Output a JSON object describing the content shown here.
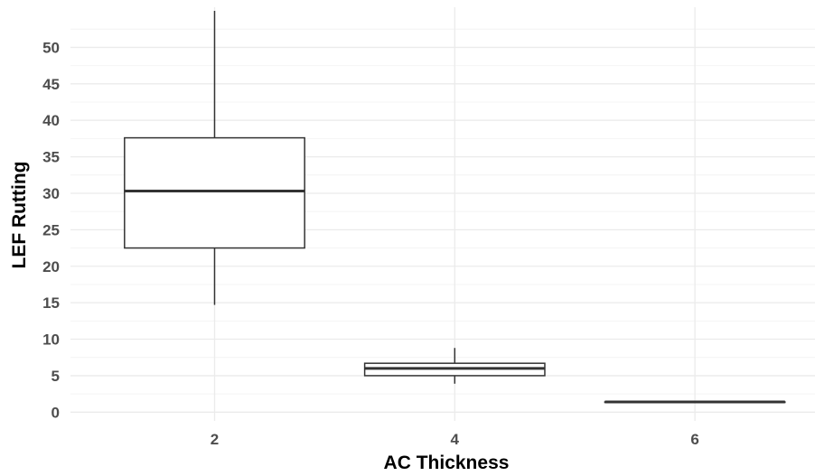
{
  "chart_data": {
    "type": "boxplot",
    "title": "",
    "xlabel": "AC Thickness",
    "ylabel": "LEF Rutting",
    "categories": [
      "2",
      "4",
      "6"
    ],
    "x_values": [
      2,
      4,
      6
    ],
    "xlim": [
      0.8,
      7.0
    ],
    "ylim": [
      -1.2,
      55.5
    ],
    "yticks": [
      0,
      5,
      10,
      15,
      20,
      25,
      30,
      35,
      40,
      45,
      50
    ],
    "grid": true,
    "boxes": [
      {
        "x": 2,
        "whisker_low": 14.7,
        "q1": 22.5,
        "median": 30.3,
        "q3": 37.6,
        "whisker_high": 55
      },
      {
        "x": 4,
        "whisker_low": 3.9,
        "q1": 5.0,
        "median": 6.0,
        "q3": 6.7,
        "whisker_high": 8.8
      },
      {
        "x": 6,
        "whisker_low": 1.4,
        "q1": 1.4,
        "median": 1.4,
        "q3": 1.4,
        "whisker_high": 1.4
      }
    ],
    "colors": {
      "box_fill": "#ffffff",
      "box_stroke": "#333333",
      "grid_major": "#ebebeb",
      "grid_minor": "#f4f4f4"
    }
  }
}
